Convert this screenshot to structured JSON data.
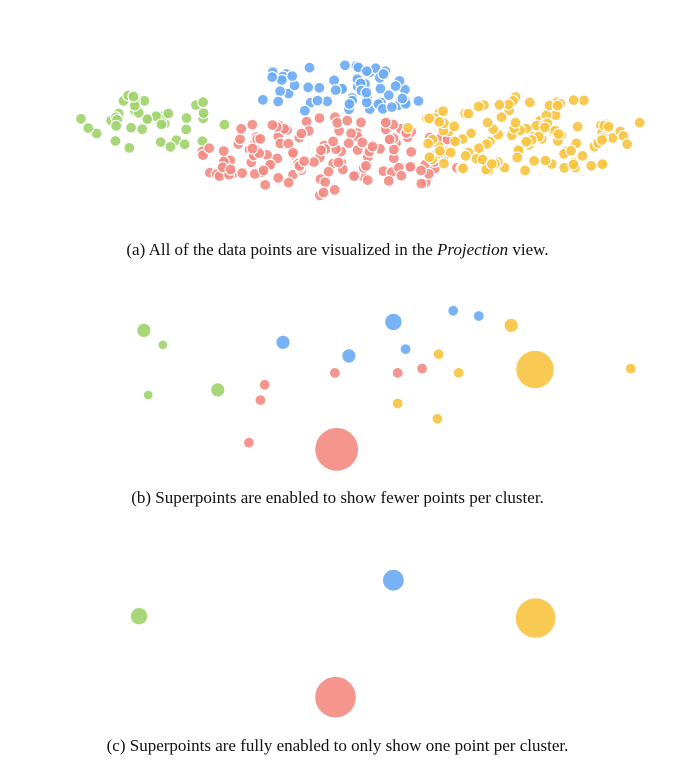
{
  "colors": {
    "green": "#9ed36a",
    "blue": "#6aaaf5",
    "red": "#f38a82",
    "orange": "#f8c440",
    "stroke": "#ffffff"
  },
  "captions": {
    "a_prefix": "(a)  All of the data points are visualized in the ",
    "a_italic": "Projection",
    "a_suffix": " view.",
    "b": "(b)  Superpoints are enabled to show fewer points per cluster.",
    "c": "(c)  Superpoints are fully enabled to only show one point per cluster."
  },
  "chart_data": [
    {
      "type": "scatter",
      "panel": "a",
      "x_range": [
        0,
        100
      ],
      "y_range": [
        0,
        100
      ],
      "clusters": [
        {
          "color": "green",
          "center": [
            16,
            58
          ],
          "spread": [
            13,
            16
          ],
          "count": 40,
          "seed": 11
        },
        {
          "color": "blue",
          "center": [
            48,
            76
          ],
          "spread": [
            15,
            14
          ],
          "count": 60,
          "seed": 23
        },
        {
          "color": "red",
          "center": [
            46,
            38
          ],
          "spread": [
            22,
            22
          ],
          "count": 140,
          "seed": 37
        },
        {
          "color": "orange",
          "center": [
            78,
            50
          ],
          "spread": [
            20,
            22
          ],
          "count": 120,
          "seed": 51
        }
      ]
    },
    {
      "type": "scatter",
      "panel": "b",
      "x_range": [
        0,
        100
      ],
      "y_range": [
        0,
        100
      ],
      "points": [
        {
          "color": "green",
          "x": 15.4,
          "y": 88.0,
          "size": 1.3
        },
        {
          "color": "green",
          "x": 18.5,
          "y": 79.5,
          "size": 0.9
        },
        {
          "color": "green",
          "x": 16.1,
          "y": 50.0,
          "size": 0.9
        },
        {
          "color": "green",
          "x": 27.5,
          "y": 53.0,
          "size": 1.3
        },
        {
          "color": "blue",
          "x": 38.2,
          "y": 81.0,
          "size": 1.3
        },
        {
          "color": "blue",
          "x": 49.0,
          "y": 73.0,
          "size": 1.3
        },
        {
          "color": "blue",
          "x": 56.3,
          "y": 93.0,
          "size": 1.6
        },
        {
          "color": "blue",
          "x": 58.3,
          "y": 77.0,
          "size": 1.0
        },
        {
          "color": "blue",
          "x": 66.1,
          "y": 99.5,
          "size": 1.0
        },
        {
          "color": "blue",
          "x": 70.3,
          "y": 96.5,
          "size": 1.0
        },
        {
          "color": "red",
          "x": 46.7,
          "y": 63.0,
          "size": 1.0
        },
        {
          "color": "red",
          "x": 57.0,
          "y": 63.0,
          "size": 1.0
        },
        {
          "color": "red",
          "x": 61.0,
          "y": 65.5,
          "size": 1.0
        },
        {
          "color": "red",
          "x": 35.2,
          "y": 56.0,
          "size": 1.0
        },
        {
          "color": "red",
          "x": 34.5,
          "y": 47.0,
          "size": 1.0
        },
        {
          "color": "red",
          "x": 32.6,
          "y": 22.0,
          "size": 1.0
        },
        {
          "color": "red",
          "x": 47.0,
          "y": 18.0,
          "size": 4.0
        },
        {
          "color": "orange",
          "x": 63.7,
          "y": 74.0,
          "size": 1.0
        },
        {
          "color": "orange",
          "x": 75.6,
          "y": 91.0,
          "size": 1.3
        },
        {
          "color": "orange",
          "x": 67.0,
          "y": 63.0,
          "size": 1.0
        },
        {
          "color": "orange",
          "x": 57.0,
          "y": 45.0,
          "size": 1.0
        },
        {
          "color": "orange",
          "x": 63.5,
          "y": 36.0,
          "size": 1.0
        },
        {
          "color": "orange",
          "x": 79.5,
          "y": 65.0,
          "size": 3.5
        },
        {
          "color": "orange",
          "x": 95.2,
          "y": 65.5,
          "size": 1.0
        }
      ]
    },
    {
      "type": "scatter",
      "panel": "c",
      "x_range": [
        0,
        100
      ],
      "y_range": [
        0,
        100
      ],
      "points": [
        {
          "color": "green",
          "x": 14.6,
          "y": 66.0,
          "size": 1.6
        },
        {
          "color": "blue",
          "x": 56.3,
          "y": 86.0,
          "size": 2.0
        },
        {
          "color": "orange",
          "x": 79.6,
          "y": 65.0,
          "size": 3.7
        },
        {
          "color": "red",
          "x": 46.8,
          "y": 21.0,
          "size": 3.8
        }
      ]
    }
  ]
}
